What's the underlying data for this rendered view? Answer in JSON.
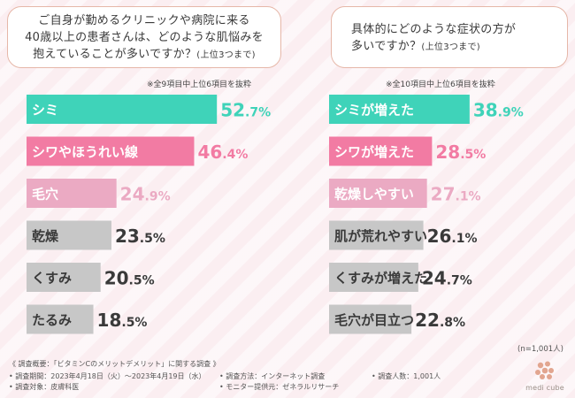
{
  "questions": {
    "left": {
      "line1": "ご自身が勤めるクリニックや病院に来る",
      "line2": "40歳以上の患者さんは、どのような肌悩みを",
      "line3": "抱えていることが多いですか？",
      "line3_small": "(上位3つまで)"
    },
    "right": {
      "line1": "具体的にどのような症状の方が",
      "line2": "多いですか？",
      "line2_small": "(上位3つまで)"
    }
  },
  "notes": {
    "left": "※全9項目中上位6項目を抜粋",
    "right": "※全10項目中上位6項目を抜粋"
  },
  "colors": {
    "teal": "#3fd3b9",
    "pink": "#f27ba3",
    "lightpink": "#ebaac3",
    "gray": "#c7c7c7"
  },
  "chart_data": [
    {
      "type": "bar",
      "orientation": "horizontal",
      "title": "ご自身が勤めるクリニックや病院に来る40歳以上の患者さんは、どのような肌悩みを抱えていることが多いですか？(上位3つまで)",
      "categories": [
        "シミ",
        "シワやほうれい線",
        "毛穴",
        "乾燥",
        "くすみ",
        "たるみ"
      ],
      "values": [
        52.7,
        46.4,
        24.9,
        23.5,
        20.5,
        18.5
      ],
      "unit": "%",
      "colors": [
        "#3fd3b9",
        "#f27ba3",
        "#ebaac3",
        "#c7c7c7",
        "#c7c7c7",
        "#c7c7c7"
      ],
      "ylim": [
        0,
        60
      ]
    },
    {
      "type": "bar",
      "orientation": "horizontal",
      "title": "具体的にどのような症状の方が多いですか？(上位3つまで)",
      "categories": [
        "シミが増えた",
        "シワが増えた",
        "乾燥しやすい",
        "肌が荒れやすい",
        "くすみが増えた",
        "毛穴が目立つ"
      ],
      "values": [
        38.9,
        28.5,
        27.1,
        26.1,
        24.7,
        22.8
      ],
      "unit": "%",
      "colors": [
        "#3fd3b9",
        "#f27ba3",
        "#ebaac3",
        "#c7c7c7",
        "#c7c7c7",
        "#c7c7c7"
      ],
      "ylim": [
        0,
        60
      ]
    }
  ],
  "footer": {
    "overview": "《 調査概要：「ビタミンCのメリットデメリット」に関する調査 》",
    "period": "• 調査期間：2023年4月18日（火）～2023年4月19日（水）",
    "method": "• 調査方法：インターネット調査",
    "count": "• 調査人数：1,001人",
    "target": "• 調査対象：皮膚科医",
    "provider": "• モニター提供元：ゼネラルリサーチ",
    "n": "(n=1,001人)",
    "brand": "medi cube"
  }
}
